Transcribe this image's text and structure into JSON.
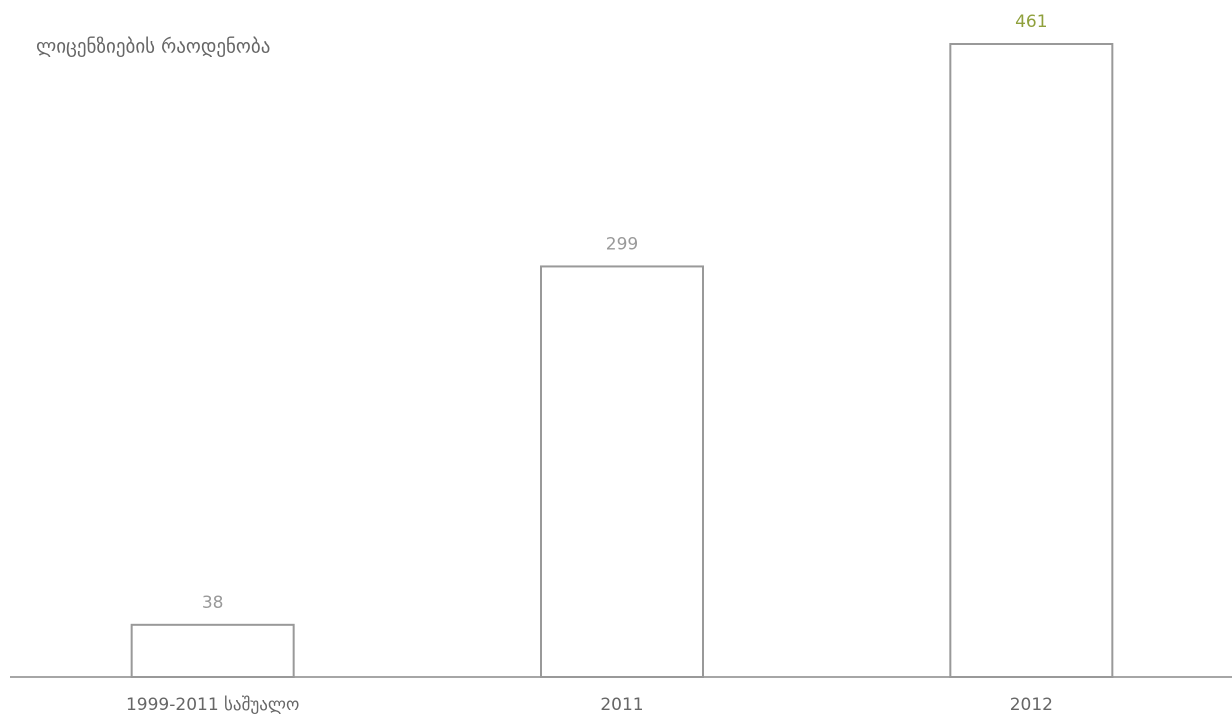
{
  "chart_data": {
    "type": "bar",
    "title": "ლიცენზიების რაოდენობა",
    "categories": [
      "1999-2011 საშუალო",
      "2011",
      "2012"
    ],
    "values": [
      38,
      299,
      461
    ],
    "color": "#ffffff",
    "edge_color": "#999999",
    "label_colors": [
      "#999999",
      "#999999",
      "#8fa03c"
    ]
  }
}
